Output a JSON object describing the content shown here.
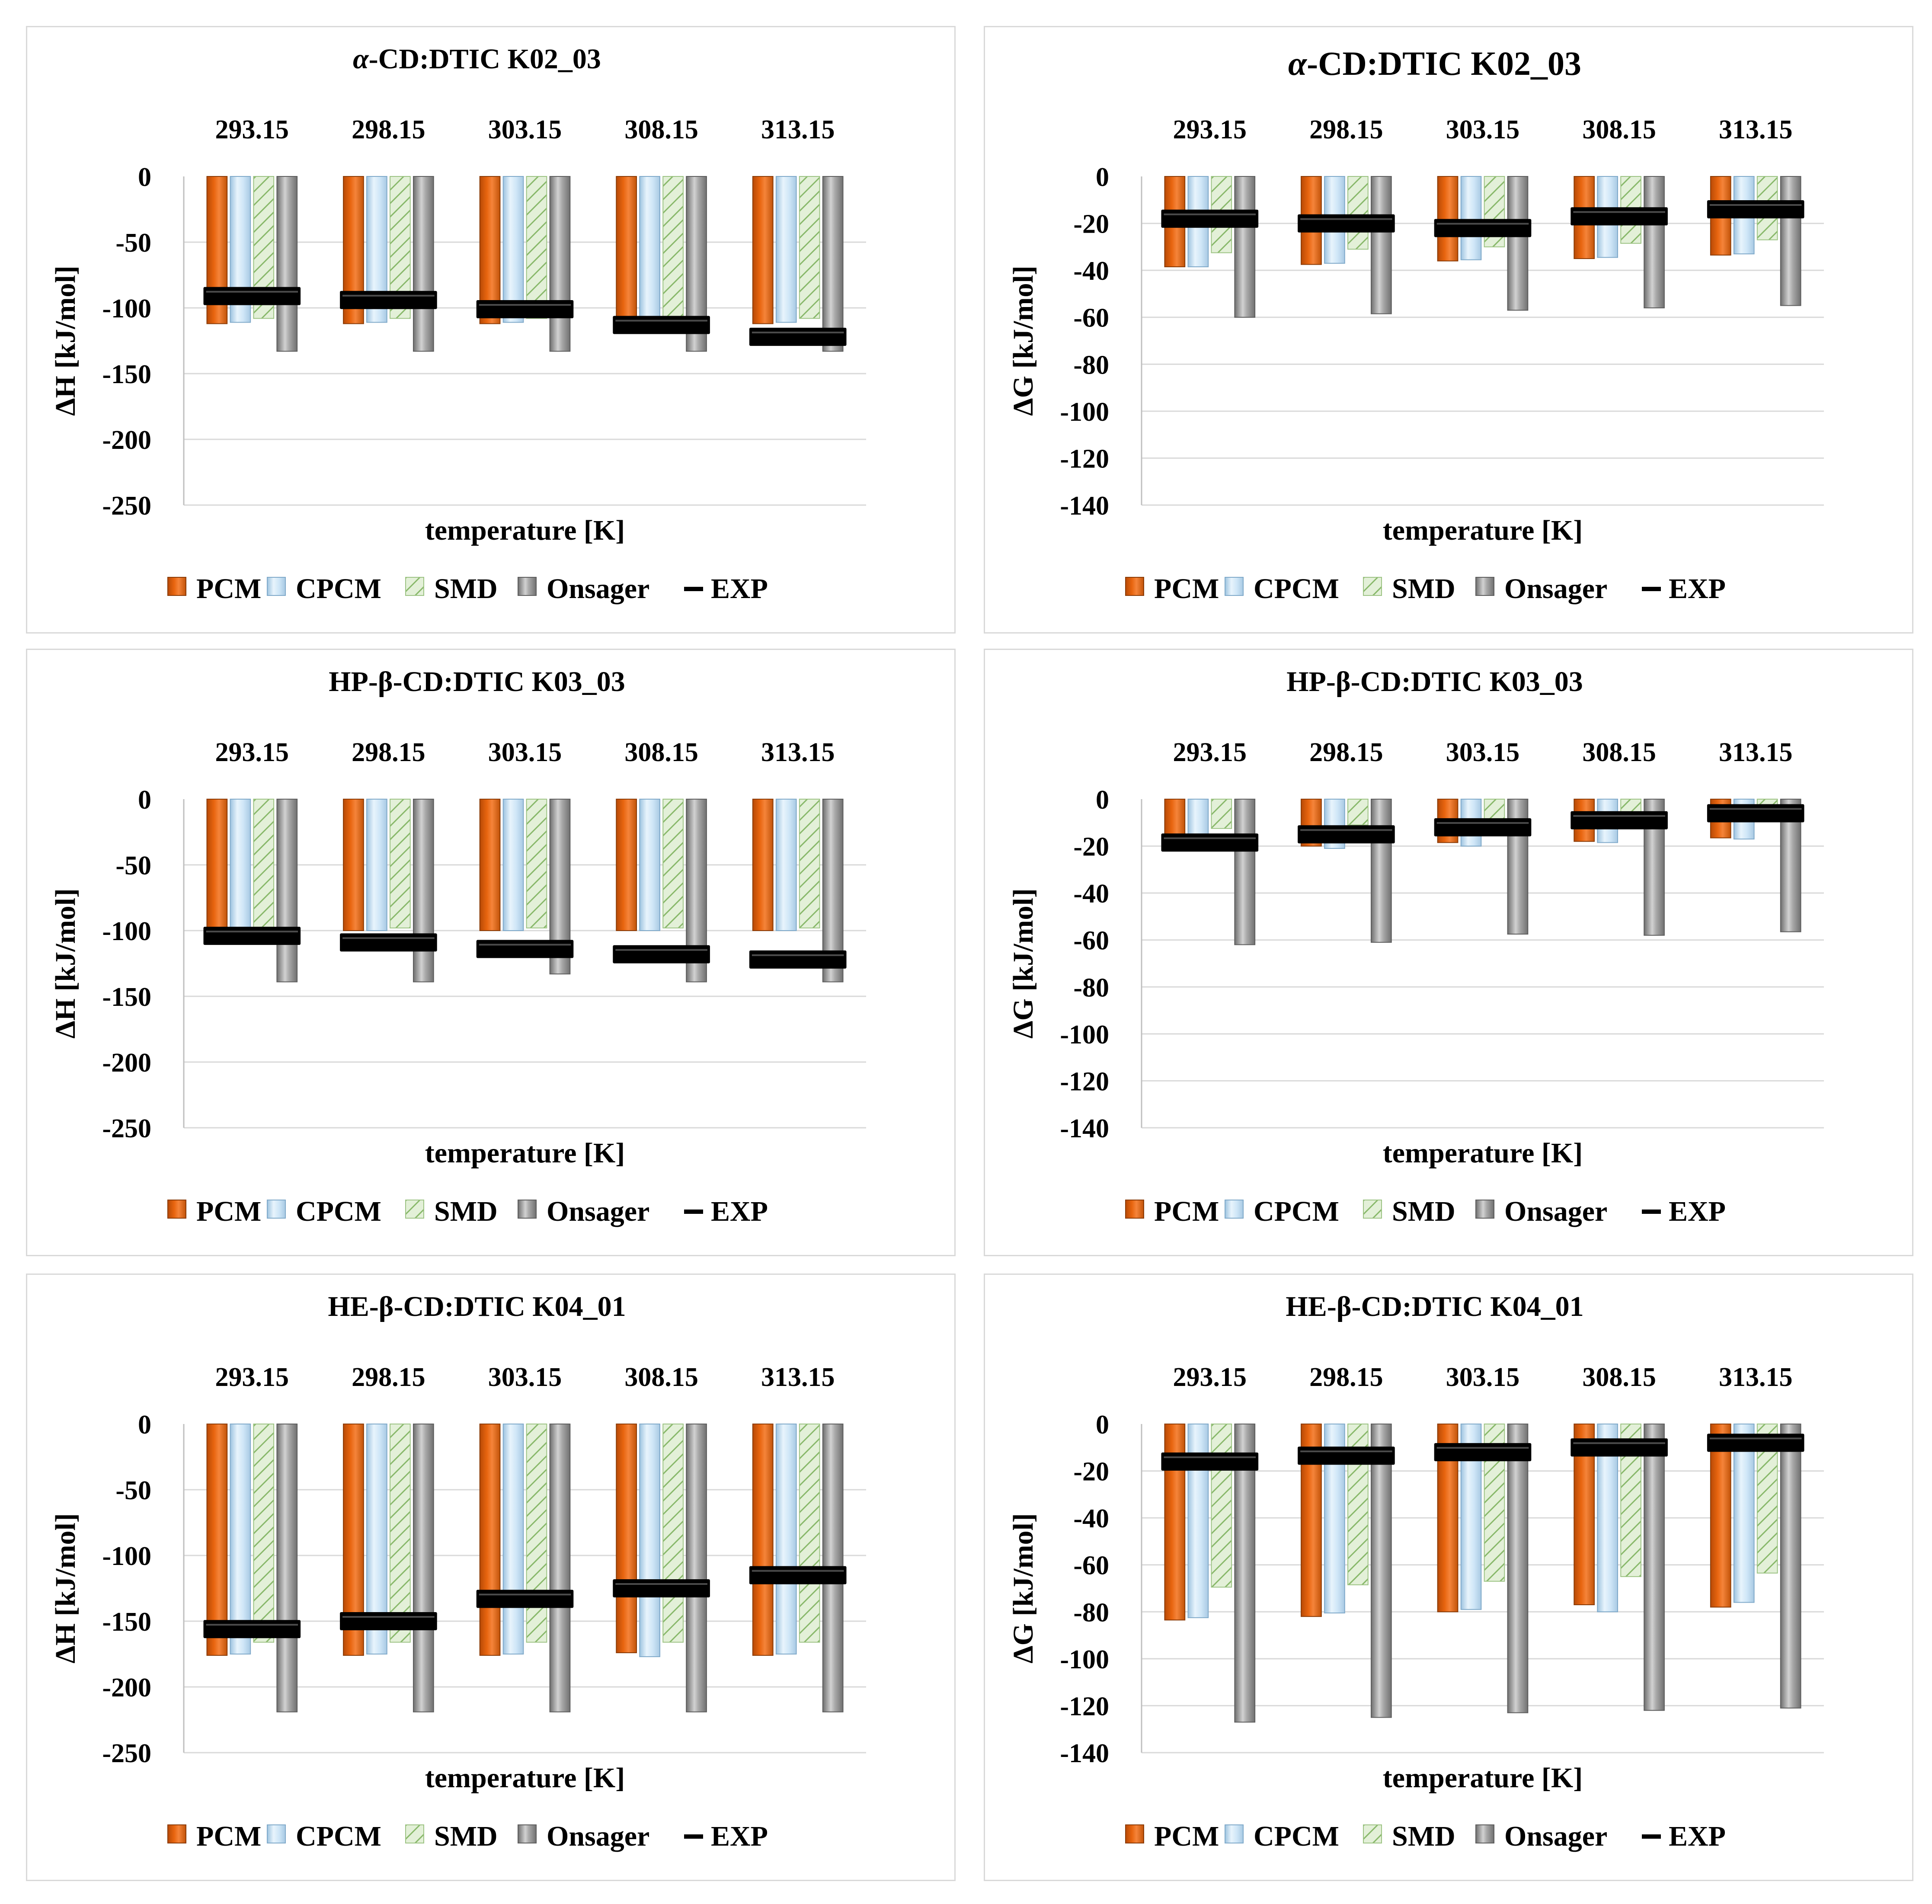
{
  "legend_labels": [
    "PCM",
    "CPCM",
    "SMD",
    "Onsager",
    "EXP"
  ],
  "series_colors": {
    "PCM": "#e8650f",
    "CPCM": "#cfe6f7",
    "SMD": "#e3f0d8",
    "Onsager": "#a9a9a9",
    "EXP": "#000000"
  },
  "chart_data": [
    {
      "type": "bar",
      "title_prefix": "α",
      "title": "-CD:DTIC K02_03",
      "xlabel": "temperature [K]",
      "ylabel": "ΔH [kJ/mol]",
      "categories": [
        "293.15",
        "298.15",
        "303.15",
        "308.15",
        "313.15"
      ],
      "ylim": [
        -250,
        0
      ],
      "yticks": [
        0,
        -50,
        -100,
        -150,
        -200,
        -250
      ],
      "legend_position": "bottom",
      "series": [
        {
          "name": "PCM",
          "values": [
            -112,
            -112,
            -112,
            -112,
            -112
          ]
        },
        {
          "name": "CPCM",
          "values": [
            -111,
            -111,
            -111,
            -111,
            -111
          ]
        },
        {
          "name": "SMD",
          "values": [
            -108,
            -108,
            -108,
            -108,
            -108
          ]
        },
        {
          "name": "Onsager",
          "values": [
            -133,
            -133,
            -133,
            -133,
            -133
          ]
        },
        {
          "name": "EXP",
          "values": [
            -91,
            -94,
            -101,
            -113,
            -122
          ]
        }
      ]
    },
    {
      "type": "bar",
      "title_prefix": "α",
      "title": "-CD:DTIC K02_03",
      "xlabel": "temperature [K]",
      "ylabel": "ΔG [kJ/mol]",
      "categories": [
        "293.15",
        "298.15",
        "303.15",
        "308.15",
        "313.15"
      ],
      "ylim": [
        -140,
        0
      ],
      "yticks": [
        0,
        -20,
        -40,
        -60,
        -80,
        -100,
        -120,
        -140
      ],
      "legend_position": "bottom",
      "series": [
        {
          "name": "PCM",
          "values": [
            -38.5,
            -37.5,
            -36,
            -35,
            -33.5
          ]
        },
        {
          "name": "CPCM",
          "values": [
            -38.5,
            -37,
            -35.5,
            -34.5,
            -33
          ]
        },
        {
          "name": "SMD",
          "values": [
            -32.5,
            -31,
            -30,
            -28.5,
            -27
          ]
        },
        {
          "name": "Onsager",
          "values": [
            -60,
            -58.5,
            -57,
            -56,
            -55
          ]
        },
        {
          "name": "EXP",
          "values": [
            -18,
            -20,
            -22,
            -17,
            -14
          ]
        }
      ]
    },
    {
      "type": "bar",
      "title": "HP-β-CD:DTIC K03_03",
      "xlabel": "temperature [K]",
      "ylabel": "ΔH [kJ/mol]",
      "categories": [
        "293.15",
        "298.15",
        "303.15",
        "308.15",
        "313.15"
      ],
      "ylim": [
        -250,
        0
      ],
      "yticks": [
        0,
        -50,
        -100,
        -150,
        -200,
        -250
      ],
      "legend_position": "bottom",
      "series": [
        {
          "name": "PCM",
          "values": [
            -100,
            -100,
            -100,
            -100,
            -100
          ]
        },
        {
          "name": "CPCM",
          "values": [
            -100,
            -100,
            -100,
            -100,
            -100
          ]
        },
        {
          "name": "SMD",
          "values": [
            -98,
            -98,
            -98,
            -98,
            -98
          ]
        },
        {
          "name": "Onsager",
          "values": [
            -139,
            -139,
            -133,
            -139,
            -139
          ]
        },
        {
          "name": "EXP",
          "values": [
            -104,
            -109,
            -114,
            -118,
            -122
          ]
        }
      ]
    },
    {
      "type": "bar",
      "title": "HP-β-CD:DTIC K03_03",
      "xlabel": "temperature [K]",
      "ylabel": "ΔG [kJ/mol]",
      "categories": [
        "293.15",
        "298.15",
        "303.15",
        "308.15",
        "313.15"
      ],
      "ylim": [
        -140,
        0
      ],
      "yticks": [
        0,
        -20,
        -40,
        -60,
        -80,
        -100,
        -120,
        -140
      ],
      "legend_position": "bottom",
      "series": [
        {
          "name": "PCM",
          "values": [
            -21,
            -20,
            -18.5,
            -18,
            -16.5
          ]
        },
        {
          "name": "CPCM",
          "values": [
            -22,
            -21,
            -20,
            -18.5,
            -17
          ]
        },
        {
          "name": "SMD",
          "values": [
            -12.5,
            -11,
            -9.5,
            -8,
            -6.5
          ]
        },
        {
          "name": "Onsager",
          "values": [
            -62,
            -61,
            -57.5,
            -58,
            -56.5
          ]
        },
        {
          "name": "EXP",
          "values": [
            -18.5,
            -15,
            -12,
            -9,
            -6
          ]
        }
      ]
    },
    {
      "type": "bar",
      "title": "HE-β-CD:DTIC K04_01",
      "xlabel": "temperature [K]",
      "ylabel": "ΔH [kJ/mol]",
      "categories": [
        "293.15",
        "298.15",
        "303.15",
        "308.15",
        "313.15"
      ],
      "ylim": [
        -250,
        0
      ],
      "yticks": [
        0,
        -50,
        -100,
        -150,
        -200,
        -250
      ],
      "legend_position": "bottom",
      "series": [
        {
          "name": "PCM",
          "values": [
            -176,
            -176,
            -176,
            -174,
            -176
          ]
        },
        {
          "name": "CPCM",
          "values": [
            -175,
            -175,
            -175,
            -177,
            -175
          ]
        },
        {
          "name": "SMD",
          "values": [
            -166,
            -166,
            -166,
            -166,
            -166
          ]
        },
        {
          "name": "Onsager",
          "values": [
            -219,
            -219,
            -219,
            -219,
            -219
          ]
        },
        {
          "name": "EXP",
          "values": [
            -156,
            -150,
            -133,
            -125,
            -115
          ]
        }
      ]
    },
    {
      "type": "bar",
      "title": "HE-β-CD:DTIC K04_01",
      "xlabel": "temperature [K]",
      "ylabel": "ΔG [kJ/mol]",
      "categories": [
        "293.15",
        "298.15",
        "303.15",
        "308.15",
        "313.15"
      ],
      "ylim": [
        -140,
        0
      ],
      "yticks": [
        0,
        -20,
        -40,
        -60,
        -80,
        -100,
        -120,
        -140
      ],
      "legend_position": "bottom",
      "series": [
        {
          "name": "PCM",
          "values": [
            -83.5,
            -82,
            -80,
            -77,
            -78
          ]
        },
        {
          "name": "CPCM",
          "values": [
            -82.5,
            -80.5,
            -79,
            -80,
            -76
          ]
        },
        {
          "name": "SMD",
          "values": [
            -69.5,
            -68.5,
            -67,
            -65,
            -63.5
          ]
        },
        {
          "name": "Onsager",
          "values": [
            -127,
            -125,
            -123,
            -122,
            -121
          ]
        },
        {
          "name": "EXP",
          "values": [
            -16,
            -13.5,
            -12,
            -10,
            -8
          ]
        }
      ]
    }
  ]
}
